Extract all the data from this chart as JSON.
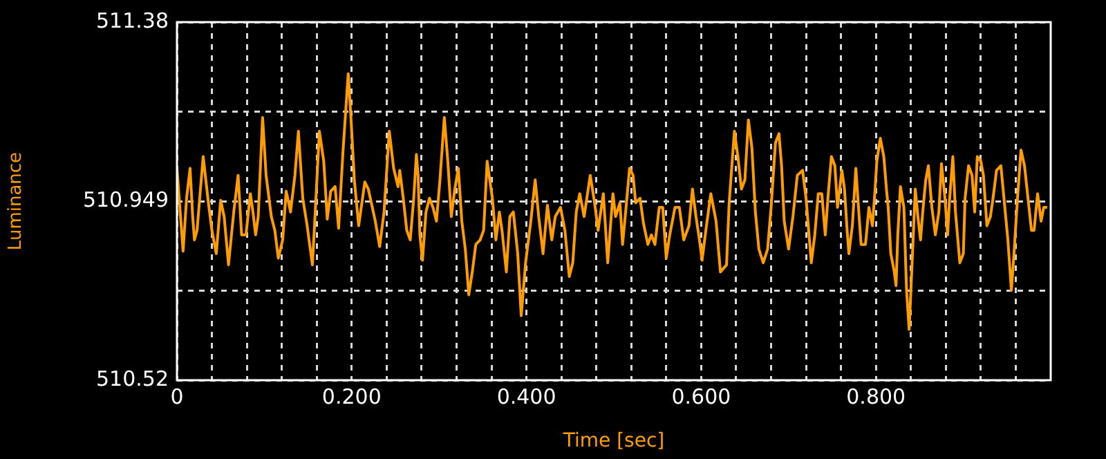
{
  "chart_data": {
    "type": "line",
    "xlabel": "Time [sec]",
    "ylabel": "Luminance",
    "color": "#ff9d00",
    "grid": true,
    "xlim": [
      0,
      1
    ],
    "xticks": [
      0,
      {
        "value": 0.04,
        "label": null
      },
      {
        "value": 0.08,
        "label": null
      },
      {
        "value": 0.12,
        "label": null
      },
      {
        "value": 0.16,
        "label": null
      },
      {
        "value": 0.2,
        "label": "0.200"
      },
      {
        "value": 0.24,
        "label": null
      },
      {
        "value": 0.28,
        "label": null
      },
      {
        "value": 0.32,
        "label": null
      },
      {
        "value": 0.36,
        "label": null
      },
      {
        "value": 0.4,
        "label": "0.400"
      },
      {
        "value": 0.44,
        "label": null
      },
      {
        "value": 0.48,
        "label": null
      },
      {
        "value": 0.52,
        "label": null
      },
      {
        "value": 0.56,
        "label": null
      },
      {
        "value": 0.6,
        "label": "0.600"
      },
      {
        "value": 0.64,
        "label": null
      },
      {
        "value": 0.68,
        "label": null
      },
      {
        "value": 0.72,
        "label": null
      },
      {
        "value": 0.76,
        "label": null
      },
      {
        "value": 0.8,
        "label": "0.800"
      },
      {
        "value": 0.84,
        "label": null
      },
      {
        "value": 0.88,
        "label": null
      },
      {
        "value": 0.92,
        "label": null
      },
      {
        "value": 0.96,
        "label": null
      }
    ],
    "ylim": [
      510.52,
      511.38
    ],
    "yticks": [
      510.52,
      {
        "value": 510.735,
        "label": null
      },
      510.949,
      {
        "value": 511.165,
        "label": null
      },
      511.38
    ],
    "x": [
      0,
      0.007,
      0.011,
      0.015,
      0.018,
      0.02,
      0.023,
      0.03,
      0.036,
      0.04,
      0.045,
      0.05,
      0.054,
      0.059,
      0.065,
      0.07,
      0.074,
      0.079,
      0.084,
      0.087,
      0.09,
      0.093,
      0.098,
      0.102,
      0.108,
      0.112,
      0.116,
      0.121,
      0.125,
      0.13,
      0.135,
      0.139,
      0.144,
      0.149,
      0.155,
      0.158,
      0.163,
      0.168,
      0.172,
      0.176,
      0.181,
      0.185,
      0.19,
      0.196,
      0.199,
      0.203,
      0.208,
      0.215,
      0.219,
      0.227,
      0.232,
      0.237,
      0.243,
      0.248,
      0.253,
      0.255,
      0.259,
      0.263,
      0.267,
      0.271,
      0.274,
      0.276,
      0.278,
      0.281,
      0.285,
      0.289,
      0.293,
      0.297,
      0.301,
      0.306,
      0.31,
      0.314,
      0.318,
      0.322,
      0.326,
      0.33,
      0.334,
      0.338,
      0.342,
      0.347,
      0.351,
      0.355,
      0.361,
      0.365,
      0.369,
      0.372,
      0.377,
      0.381,
      0.385,
      0.39,
      0.394,
      0.399,
      0.405,
      0.41,
      0.414,
      0.419,
      0.424,
      0.429,
      0.433,
      0.439,
      0.444,
      0.449,
      0.453,
      0.457,
      0.461,
      0.466,
      0.473,
      0.478,
      0.482,
      0.488,
      0.493,
      0.499,
      0.502,
      0.507,
      0.51,
      0.514,
      0.518,
      0.522,
      0.525,
      0.53,
      0.534,
      0.539,
      0.543,
      0.547,
      0.552,
      0.556,
      0.56,
      0.564,
      0.57,
      0.575,
      0.58,
      0.586,
      0.59,
      0.594,
      0.598,
      0.601,
      0.606,
      0.611,
      0.617,
      0.622,
      0.629,
      0.632,
      0.638,
      0.642,
      0.646,
      0.65,
      0.654,
      0.658,
      0.662,
      0.666,
      0.671,
      0.676,
      0.68,
      0.685,
      0.689,
      0.692,
      0.695,
      0.7,
      0.705,
      0.71,
      0.716,
      0.72,
      0.726,
      0.73,
      0.734,
      0.738,
      0.742,
      0.745,
      0.749,
      0.753,
      0.756,
      0.761,
      0.764,
      0.767,
      0.769,
      0.773,
      0.777,
      0.78,
      0.783,
      0.788,
      0.792,
      0.796,
      0.799,
      0.801,
      0.805,
      0.809,
      0.812,
      0.814,
      0.817,
      0.821,
      0.823,
      0.825,
      0.828,
      0.832,
      0.835,
      0.838,
      0.84,
      0.843,
      0.845,
      0.848,
      0.851,
      0.854,
      0.857,
      0.86,
      0.864,
      0.868,
      0.872,
      0.875,
      0.879,
      0.882,
      0.884,
      0.888,
      0.891,
      0.896,
      0.9,
      0.902,
      0.906,
      0.91,
      0.913,
      0.916,
      0.92,
      0.923,
      0.927,
      0.931,
      0.934,
      0.938,
      0.943,
      0.947,
      0.951,
      0.955,
      0.958,
      0.962,
      0.966,
      0.97,
      0.974,
      0.978,
      0.981,
      0.985,
      0.989,
      0.992,
      0.996
    ],
    "values": [
      511.029,
      510.83,
      510.957,
      511.029,
      510.913,
      510.857,
      510.88,
      511.057,
      510.946,
      510.88,
      510.824,
      510.952,
      510.913,
      510.797,
      510.924,
      511.012,
      510.869,
      510.869,
      510.968,
      510.924,
      510.869,
      510.913,
      511.151,
      511.012,
      510.913,
      510.88,
      510.813,
      510.857,
      510.974,
      510.924,
      511.012,
      511.118,
      510.957,
      510.891,
      510.797,
      510.913,
      511.118,
      511.046,
      510.907,
      510.974,
      510.985,
      510.885,
      511.068,
      511.256,
      511.156,
      511.001,
      510.891,
      510.996,
      510.979,
      510.902,
      510.841,
      510.924,
      511.118,
      511.029,
      510.985,
      511.024,
      510.957,
      510.88,
      510.857,
      510.957,
      511.062,
      511.012,
      510.869,
      510.808,
      510.924,
      510.957,
      510.935,
      510.902,
      511.001,
      511.151,
      511.046,
      510.913,
      510.979,
      511.029,
      510.902,
      510.835,
      510.725,
      510.78,
      510.846,
      510.857,
      510.88,
      511.046,
      510.957,
      510.857,
      510.924,
      510.88,
      510.78,
      510.913,
      510.924,
      510.824,
      510.675,
      510.802,
      510.902,
      511.001,
      510.913,
      510.824,
      510.94,
      510.857,
      510.913,
      510.935,
      510.88,
      510.769,
      510.802,
      510.924,
      510.968,
      510.913,
      511.012,
      510.946,
      510.88,
      510.968,
      510.802,
      510.968,
      510.913,
      510.946,
      510.846,
      510.935,
      511.029,
      511.012,
      510.946,
      510.957,
      510.896,
      510.846,
      510.869,
      510.846,
      510.935,
      510.935,
      510.813,
      510.869,
      510.935,
      510.935,
      510.857,
      510.891,
      510.979,
      510.913,
      510.857,
      510.808,
      510.891,
      510.968,
      510.902,
      510.78,
      510.797,
      510.946,
      511.118,
      511.057,
      510.979,
      511.001,
      511.145,
      511.079,
      510.924,
      510.835,
      510.802,
      510.835,
      510.935,
      511.09,
      511.112,
      511.035,
      510.902,
      510.835,
      510.913,
      511.012,
      511.024,
      510.957,
      510.802,
      510.869,
      510.968,
      510.968,
      510.869,
      510.957,
      511.057,
      511.035,
      510.935,
      511.024,
      510.979,
      510.88,
      510.824,
      510.891,
      511.029,
      510.935,
      510.846,
      510.846,
      510.935,
      510.891,
      510.979,
      511.046,
      511.101,
      511.057,
      510.979,
      510.935,
      510.824,
      510.78,
      510.747,
      510.869,
      510.985,
      510.935,
      510.736,
      510.642,
      510.736,
      510.88,
      510.979,
      510.913,
      510.857,
      510.935,
      511.001,
      511.035,
      510.935,
      510.869,
      510.924,
      511.04,
      510.957,
      510.869,
      510.946,
      511.057,
      510.924,
      510.802,
      510.824,
      510.957,
      511.035,
      511.012,
      510.924,
      511.057,
      511.046,
      511.012,
      510.891,
      510.913,
      510.957,
      511.024,
      511.035,
      510.946,
      510.857,
      510.736,
      510.824,
      510.957,
      511.073,
      511.035,
      510.957,
      510.88,
      510.88,
      510.968,
      510.902,
      510.935,
      510.935
    ]
  }
}
